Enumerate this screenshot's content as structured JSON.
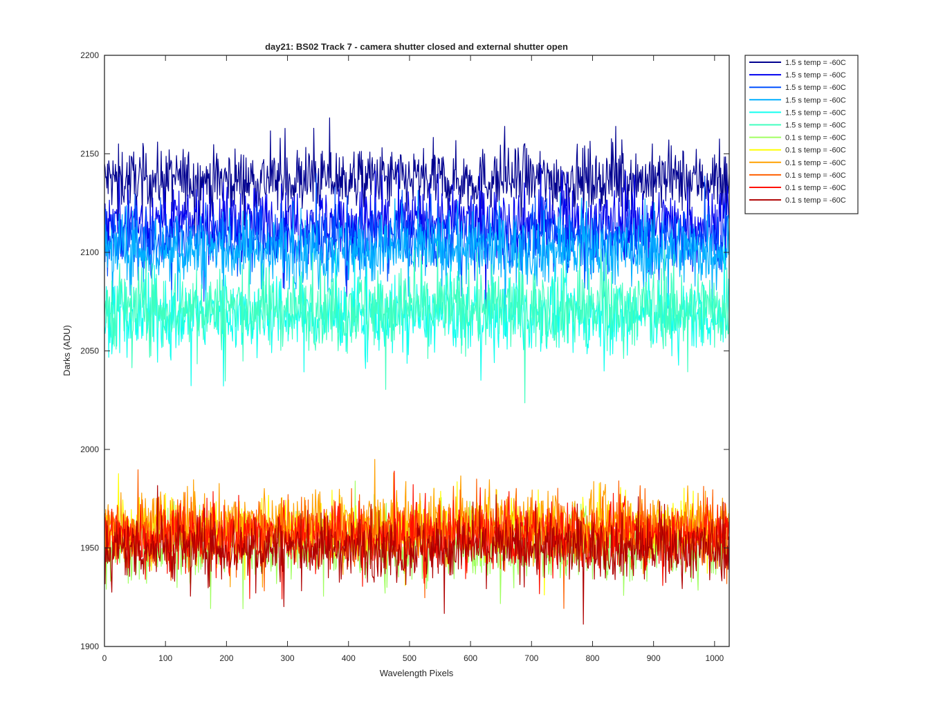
{
  "chart_data": {
    "type": "line",
    "title": "day21: BS02  Track 7 - camera shutter closed and external shutter open",
    "xlabel": "Wavelength Pixels",
    "ylabel": "Darks (ADU)",
    "xlim": [
      0,
      1024
    ],
    "ylim": [
      1900,
      2200
    ],
    "xticks": [
      "0",
      "100",
      "200",
      "300",
      "400",
      "500",
      "600",
      "700",
      "800",
      "900",
      "1000"
    ],
    "yticks": [
      "1900",
      "1950",
      "2000",
      "2050",
      "2100",
      "2150",
      "2200"
    ],
    "grid": false,
    "legend_position": "outside-top-right",
    "series": [
      {
        "name": "1.5 s temp = -60C",
        "color": "#00008F",
        "mean": 2137,
        "noise": 8
      },
      {
        "name": "1.5 s temp = -60C",
        "color": "#0000EF",
        "mean": 2115,
        "noise": 9
      },
      {
        "name": "1.5 s temp = -60C",
        "color": "#0050FF",
        "mean": 2107,
        "noise": 8
      },
      {
        "name": "1.5 s temp = -60C",
        "color": "#00AFFF",
        "mean": 2101,
        "noise": 9
      },
      {
        "name": "1.5 s temp = -60C",
        "color": "#10FFEF",
        "mean": 2068,
        "noise": 9
      },
      {
        "name": "1.5 s temp = -60C",
        "color": "#40FFBF",
        "mean": 2072,
        "noise": 10
      },
      {
        "name": "0.1 s temp = -60C",
        "color": "#A0FF60",
        "mean": 1951,
        "noise": 8
      },
      {
        "name": "0.1 s temp = -60C",
        "color": "#FFFF00",
        "mean": 1960,
        "noise": 7
      },
      {
        "name": "0.1 s temp = -60C",
        "color": "#FFA000",
        "mean": 1962,
        "noise": 8
      },
      {
        "name": "0.1 s temp = -60C",
        "color": "#FF6000",
        "mean": 1958,
        "noise": 8
      },
      {
        "name": "0.1 s temp = -60C",
        "color": "#FF1000",
        "mean": 1956,
        "noise": 8
      },
      {
        "name": "0.1 s temp = -60C",
        "color": "#AF0000",
        "mean": 1950,
        "noise": 8
      }
    ]
  }
}
